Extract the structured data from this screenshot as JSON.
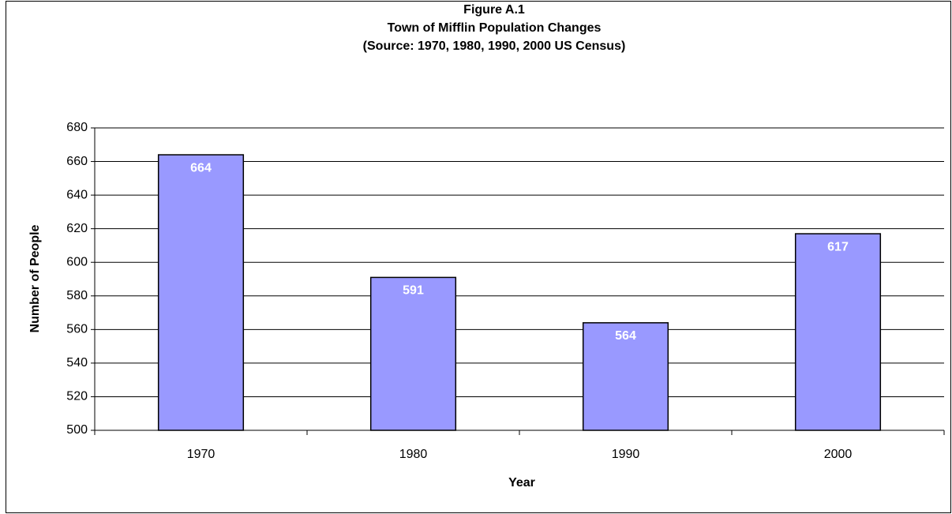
{
  "chart_data": {
    "type": "bar",
    "title": [
      "Figure A.1",
      "Town of Mifflin Population Changes",
      "(Source:  1970, 1980, 1990, 2000 US Census)"
    ],
    "x_label": "Year",
    "y_label": "Number of People",
    "categories": [
      "1970",
      "1980",
      "1990",
      "2000"
    ],
    "values": [
      664,
      591,
      564,
      617
    ],
    "color": "#9999ff",
    "ylim": [
      500,
      680
    ],
    "yticks": [
      500,
      520,
      540,
      560,
      580,
      600,
      620,
      640,
      660,
      680
    ],
    "grid": true
  }
}
